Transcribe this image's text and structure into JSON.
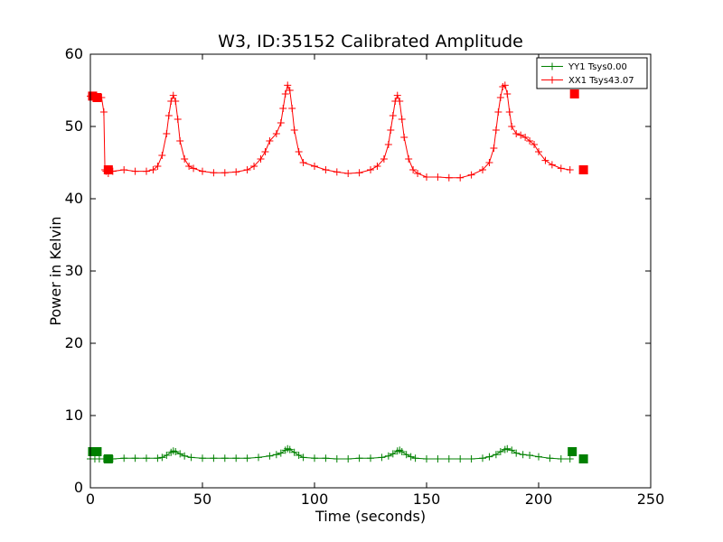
{
  "chart_data": {
    "type": "line",
    "title": "W3, ID:35152 Calibrated Amplitude",
    "xlabel": "Time (seconds)",
    "ylabel": "Power in Kelvin",
    "xlim": [
      0,
      250
    ],
    "ylim": [
      0,
      60
    ],
    "xticks": [
      "0",
      "50",
      "100",
      "150",
      "200",
      "250"
    ],
    "yticks": [
      "0",
      "10",
      "20",
      "30",
      "40",
      "50",
      "60"
    ],
    "grid": false,
    "legend_position": "top-right",
    "series": [
      {
        "name": "YY1 Tsys0.00",
        "color": "#008000",
        "marker": "+",
        "x": [
          0,
          2,
          4,
          6,
          8,
          10,
          15,
          20,
          25,
          30,
          32,
          34,
          36,
          37,
          38,
          40,
          42,
          45,
          50,
          55,
          60,
          65,
          70,
          75,
          80,
          83,
          85,
          87,
          88,
          89,
          91,
          93,
          95,
          100,
          105,
          110,
          115,
          120,
          125,
          130,
          133,
          135,
          137,
          138,
          139,
          141,
          143,
          145,
          150,
          155,
          160,
          165,
          170,
          175,
          178,
          181,
          183,
          185,
          186,
          188,
          190,
          193,
          196,
          200,
          205,
          210,
          214
        ],
        "y": [
          4.0,
          4.0,
          4.0,
          4.0,
          4.0,
          4.0,
          4.1,
          4.1,
          4.1,
          4.1,
          4.2,
          4.5,
          4.9,
          5.1,
          5.0,
          4.7,
          4.4,
          4.2,
          4.1,
          4.1,
          4.1,
          4.1,
          4.1,
          4.2,
          4.4,
          4.6,
          4.8,
          5.2,
          5.4,
          5.3,
          4.9,
          4.5,
          4.2,
          4.1,
          4.1,
          4.0,
          4.0,
          4.1,
          4.1,
          4.2,
          4.4,
          4.7,
          5.1,
          5.2,
          5.0,
          4.6,
          4.3,
          4.1,
          4.0,
          4.0,
          4.0,
          4.0,
          4.0,
          4.1,
          4.3,
          4.6,
          5.0,
          5.3,
          5.4,
          5.2,
          4.8,
          4.6,
          4.5,
          4.3,
          4.1,
          4.0,
          4.0
        ]
      },
      {
        "name": "XX1 Tsys43.07",
        "color": "#ff0000",
        "marker": "+",
        "x": [
          0,
          1,
          2,
          3,
          4,
          5,
          6,
          6.5,
          7,
          8,
          10,
          15,
          20,
          25,
          28,
          30,
          32,
          34,
          35,
          36,
          37,
          38,
          39,
          40,
          42,
          44,
          46,
          50,
          55,
          60,
          65,
          70,
          73,
          76,
          78,
          80,
          83,
          85,
          86,
          87,
          88,
          89,
          90,
          91,
          93,
          95,
          100,
          105,
          110,
          115,
          120,
          125,
          128,
          131,
          133,
          134,
          135,
          136,
          137,
          138,
          139,
          140,
          142,
          144,
          146,
          150,
          155,
          160,
          165,
          170,
          175,
          178,
          180,
          181,
          182,
          183,
          184,
          185,
          186,
          187,
          188,
          190,
          192,
          194,
          196,
          198,
          200,
          203,
          206,
          210,
          214
        ],
        "y": [
          54.2,
          54.2,
          54.2,
          54.1,
          54.0,
          54.0,
          52.0,
          44.0,
          43.8,
          43.5,
          43.8,
          44.0,
          43.8,
          43.8,
          44.0,
          44.5,
          46.0,
          49.0,
          51.5,
          53.5,
          54.3,
          53.5,
          51.0,
          48.0,
          45.5,
          44.5,
          44.2,
          43.8,
          43.6,
          43.6,
          43.7,
          44.0,
          44.5,
          45.5,
          46.5,
          48.0,
          49.0,
          50.5,
          52.5,
          54.5,
          55.7,
          55.0,
          52.5,
          49.5,
          46.5,
          45.0,
          44.5,
          44.0,
          43.7,
          43.5,
          43.6,
          44.0,
          44.5,
          45.5,
          47.5,
          49.5,
          51.5,
          53.5,
          54.3,
          53.5,
          51.0,
          48.5,
          45.5,
          44.0,
          43.5,
          43.0,
          43.0,
          42.9,
          42.9,
          43.3,
          44.0,
          45.0,
          47.0,
          49.5,
          52.0,
          54.0,
          55.5,
          55.7,
          54.5,
          52.0,
          50.0,
          49.0,
          48.8,
          48.5,
          48.0,
          47.5,
          46.5,
          45.3,
          44.7,
          44.2,
          44.0
        ]
      }
    ],
    "end_markers": [
      {
        "series": 0,
        "x": [
          1,
          3,
          8,
          215,
          220
        ],
        "y": [
          5.0,
          5.0,
          4.0,
          5.0,
          4.0
        ]
      },
      {
        "series": 1,
        "x": [
          1,
          3,
          8,
          216,
          220
        ],
        "y": [
          54.2,
          54.0,
          44.0,
          54.5,
          44.0
        ]
      }
    ]
  }
}
